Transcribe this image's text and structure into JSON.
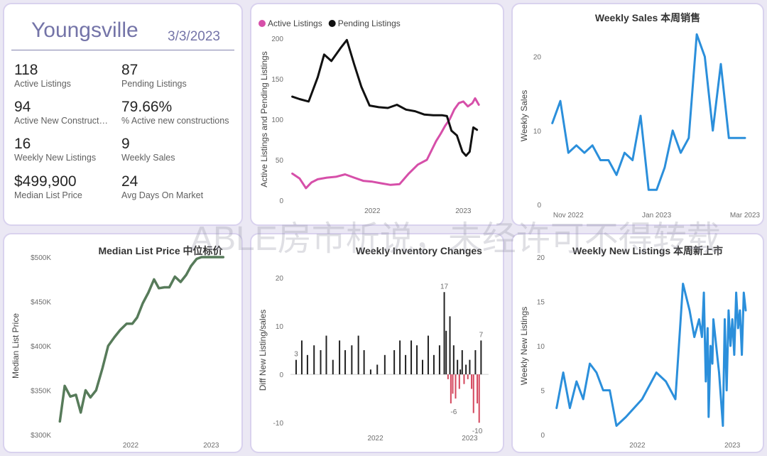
{
  "kpi": {
    "city": "Youngsville",
    "date": "3/3/2023",
    "items": [
      {
        "value": "118",
        "label": "Active Listings"
      },
      {
        "value": "87",
        "label": "Pending Listings"
      },
      {
        "value": "94",
        "label": "Active New Construction"
      },
      {
        "value": "79.66%",
        "label": "% Active new constructions"
      },
      {
        "value": "16",
        "label": "Weekly New Listings"
      },
      {
        "value": "9",
        "label": "Weekly Sales"
      },
      {
        "value": "$499,900",
        "label": "Median List Price"
      },
      {
        "value": "24",
        "label": "Avg Days On Market"
      }
    ]
  },
  "watermark": "ABLE房市析说，未经许可不得转载",
  "chart_data": [
    {
      "type": "line",
      "title": "",
      "ylabel": "Active Listings and Pending Listings",
      "xlabel": "",
      "ylim": [
        0,
        200
      ],
      "yticks": [
        0,
        50,
        100,
        150,
        200
      ],
      "xticks": [
        {
          "label": "2022",
          "x": 2022.0
        },
        {
          "label": "2023",
          "x": 2023.0
        }
      ],
      "xrange": [
        2021.1,
        2023.2
      ],
      "legend": "top-left",
      "series": [
        {
          "name": "Active Listings",
          "color": "#d64fa9",
          "x": [
            2021.12,
            2021.2,
            2021.27,
            2021.33,
            2021.4,
            2021.5,
            2021.6,
            2021.7,
            2021.8,
            2021.9,
            2022.0,
            2022.1,
            2022.2,
            2022.3,
            2022.4,
            2022.5,
            2022.6,
            2022.7,
            2022.75,
            2022.8,
            2022.85,
            2022.9,
            2022.95,
            2023.0,
            2023.05,
            2023.1,
            2023.13,
            2023.17
          ],
          "y": [
            33,
            27,
            15,
            22,
            26,
            28,
            29,
            32,
            28,
            24,
            23,
            21,
            19,
            20,
            33,
            44,
            50,
            73,
            82,
            92,
            100,
            112,
            120,
            122,
            116,
            120,
            126,
            118
          ]
        },
        {
          "name": "Pending Listings",
          "color": "#111111",
          "x": [
            2021.12,
            2021.2,
            2021.3,
            2021.4,
            2021.47,
            2021.55,
            2021.65,
            2021.72,
            2021.8,
            2021.88,
            2021.97,
            2022.07,
            2022.17,
            2022.27,
            2022.37,
            2022.47,
            2022.57,
            2022.67,
            2022.77,
            2022.82,
            2022.87,
            2022.93,
            2022.99,
            2023.03,
            2023.07,
            2023.11,
            2023.15
          ],
          "y": [
            128,
            125,
            122,
            152,
            180,
            172,
            188,
            198,
            168,
            140,
            117,
            115,
            114,
            118,
            112,
            110,
            106,
            105,
            105,
            104,
            86,
            80,
            60,
            55,
            60,
            90,
            87
          ]
        }
      ]
    },
    {
      "type": "line",
      "title": "Weekly Sales 本周销售",
      "ylabel": "Weekly Sales",
      "xlabel": "",
      "ylim": [
        0,
        24
      ],
      "yticks": [
        0,
        10,
        20
      ],
      "xticks": [
        {
          "label": "Nov 2022",
          "x": 2
        },
        {
          "label": "Jan 2023",
          "x": 13
        },
        {
          "label": "Mar 2023",
          "x": 24
        }
      ],
      "xrange": [
        -0.5,
        24.8
      ],
      "series": [
        {
          "name": "Weekly Sales",
          "color": "#2b8fdb",
          "x": [
            0,
            1,
            2,
            3,
            4,
            5,
            6,
            7,
            8,
            9,
            10,
            11,
            12,
            13,
            14,
            15,
            16,
            17,
            18,
            19,
            20,
            21,
            22,
            23,
            24
          ],
          "y": [
            11,
            14,
            7,
            8,
            7,
            8,
            6,
            6,
            4,
            7,
            6,
            12,
            2,
            2,
            5,
            10,
            7,
            9,
            23,
            20,
            10,
            19,
            9,
            9,
            9
          ]
        }
      ]
    },
    {
      "type": "line",
      "title": "Median List Price  中位标价",
      "ylabel": "Median List Price",
      "xlabel": "",
      "ylim": [
        300000,
        500000
      ],
      "yticks": [
        300000,
        350000,
        400000,
        450000,
        500000
      ],
      "ytick_labels": [
        "$300K",
        "$350K",
        "$400K",
        "$450K",
        "$500K"
      ],
      "xticks": [
        {
          "label": "2022",
          "x": 2022.0
        },
        {
          "label": "2023",
          "x": 2023.0
        }
      ],
      "xrange": [
        2021.1,
        2023.2
      ],
      "series": [
        {
          "name": "Median List Price",
          "color": "#577b5a",
          "x": [
            2021.12,
            2021.18,
            2021.25,
            2021.32,
            2021.38,
            2021.44,
            2021.5,
            2021.57,
            2021.65,
            2021.72,
            2021.8,
            2021.87,
            2021.95,
            2022.02,
            2022.08,
            2022.15,
            2022.22,
            2022.29,
            2022.35,
            2022.42,
            2022.48,
            2022.55,
            2022.62,
            2022.69,
            2022.75,
            2022.82,
            2022.88,
            2022.95,
            2023.0,
            2023.05,
            2023.1,
            2023.15
          ],
          "y": [
            315000,
            355000,
            343000,
            345000,
            325000,
            350000,
            342000,
            350000,
            375000,
            400000,
            410000,
            418000,
            425000,
            425000,
            432000,
            448000,
            460000,
            475000,
            465000,
            466000,
            466000,
            478000,
            472000,
            480000,
            490000,
            498000,
            500000,
            500000,
            500000,
            500000,
            500000,
            500000
          ]
        }
      ]
    },
    {
      "type": "bar",
      "title": "Weekly Inventory Changes",
      "ylabel": "Diff New Listing/sales",
      "xlabel": "",
      "ylim": [
        -11,
        21
      ],
      "yticks": [
        -10,
        0,
        10,
        20
      ],
      "xticks": [
        {
          "label": "2022",
          "x": 2022.0
        },
        {
          "label": "2023",
          "x": 2023.0
        }
      ],
      "xrange": [
        2021.1,
        2023.2
      ],
      "positive_color": "#222222",
      "negative_color": "#d4475d",
      "annotations": [
        {
          "text": "3",
          "x": 2021.16,
          "y": 3
        },
        {
          "text": "17",
          "x": 2022.73,
          "y": 17
        },
        {
          "text": "-6",
          "x": 2022.83,
          "y": -6
        },
        {
          "text": "7",
          "x": 2023.12,
          "y": 7
        },
        {
          "text": "-10",
          "x": 2023.08,
          "y": -10
        }
      ],
      "x": [
        2021.16,
        2021.22,
        2021.28,
        2021.35,
        2021.42,
        2021.48,
        2021.55,
        2021.62,
        2021.68,
        2021.75,
        2021.82,
        2021.88,
        2021.95,
        2022.02,
        2022.1,
        2022.2,
        2022.26,
        2022.32,
        2022.38,
        2022.44,
        2022.5,
        2022.56,
        2022.62,
        2022.68,
        2022.73,
        2022.75,
        2022.77,
        2022.79,
        2022.8,
        2022.82,
        2022.83,
        2022.85,
        2022.87,
        2022.89,
        2022.9,
        2022.92,
        2022.94,
        2022.96,
        2022.98,
        2023.0,
        2023.02,
        2023.04,
        2023.06,
        2023.08,
        2023.1,
        2023.12
      ],
      "values": [
        3,
        7,
        4,
        6,
        5,
        8,
        3,
        7,
        5,
        6,
        8,
        5,
        1,
        2,
        4,
        5,
        7,
        4,
        7,
        6,
        3,
        8,
        4,
        6,
        17,
        9,
        -1,
        12,
        -6,
        -4,
        6,
        -5,
        3,
        -3,
        1,
        5,
        -2,
        2,
        -1,
        3,
        -3,
        -8,
        5,
        -6,
        -10,
        7
      ]
    },
    {
      "type": "line",
      "title": "Weekly New Listings  本周新上市",
      "ylabel": "Weekly New Listings",
      "xlabel": "",
      "ylim": [
        0,
        20
      ],
      "yticks": [
        0,
        5,
        10,
        15,
        20
      ],
      "xticks": [
        {
          "label": "2022",
          "x": 2022.0
        },
        {
          "label": "2023",
          "x": 2023.0
        }
      ],
      "xrange": [
        2021.1,
        2023.2
      ],
      "series": [
        {
          "name": "Weekly New Listings",
          "color": "#2b8fdb",
          "x": [
            2021.15,
            2021.22,
            2021.29,
            2021.36,
            2021.43,
            2021.5,
            2021.57,
            2021.64,
            2021.71,
            2021.78,
            2021.88,
            2022.05,
            2022.2,
            2022.3,
            2022.4,
            2022.48,
            2022.55,
            2022.6,
            2022.65,
            2022.68,
            2022.7,
            2022.72,
            2022.74,
            2022.75,
            2022.77,
            2022.79,
            2022.8,
            2022.82,
            2022.84,
            2022.86,
            2022.88,
            2022.9,
            2022.92,
            2022.94,
            2022.96,
            2022.98,
            2023.0,
            2023.02,
            2023.04,
            2023.06,
            2023.08,
            2023.1,
            2023.12,
            2023.14
          ],
          "y": [
            3,
            7,
            3,
            6,
            4,
            8,
            7,
            5,
            5,
            1,
            2,
            4,
            7,
            6,
            4,
            17,
            14,
            11,
            13,
            11,
            16,
            6,
            12,
            2,
            10,
            8,
            13,
            11,
            9,
            7,
            4,
            1,
            13,
            5,
            14,
            10,
            13,
            9,
            16,
            12,
            14,
            9,
            16,
            14
          ]
        }
      ]
    }
  ]
}
